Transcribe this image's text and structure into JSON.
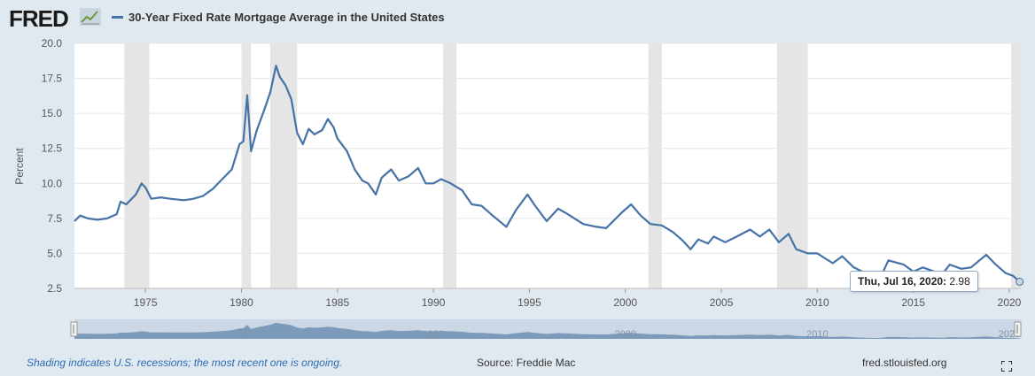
{
  "header": {
    "logo_text": "FRED",
    "logo_icon": "trend-chart-icon",
    "series_label": "30-Year Fixed Rate Mortgage Average in the United States",
    "series_color": "#4572a7"
  },
  "tooltip": {
    "date": "Thu, Jul 16, 2020:",
    "value": "2.98"
  },
  "footer": {
    "note": "Shading indicates U.S. recessions; the most recent one is ongoing.",
    "source": "Source: Freddie Mac",
    "site": "fred.stlouisfed.org"
  },
  "chart_data": {
    "type": "line",
    "ylabel": "Percent",
    "ylim": [
      2.5,
      20.0
    ],
    "yticks": [
      "2.5",
      "5.0",
      "7.5",
      "10.0",
      "12.5",
      "15.0",
      "17.5",
      "20.0"
    ],
    "xlim": [
      1971.3,
      2020.6
    ],
    "xticks": [
      "1975",
      "1980",
      "1985",
      "1990",
      "1995",
      "2000",
      "2005",
      "2010",
      "2015",
      "2020"
    ],
    "grid": true,
    "recessions": [
      [
        1973.9,
        1975.2
      ],
      [
        1980.0,
        1980.5
      ],
      [
        1981.5,
        1982.9
      ],
      [
        1990.5,
        1991.2
      ],
      [
        2001.2,
        2001.9
      ],
      [
        2007.9,
        2009.5
      ],
      [
        2020.1,
        2020.6
      ]
    ],
    "navigator_labels": [
      "1980",
      "1990",
      "2000",
      "2010",
      "2020"
    ],
    "series": [
      {
        "name": "30-Year Fixed Rate Mortgage Average in the United States",
        "color": "#4572a7",
        "points": [
          [
            1971.3,
            7.3
          ],
          [
            1971.6,
            7.7
          ],
          [
            1972.0,
            7.5
          ],
          [
            1972.5,
            7.4
          ],
          [
            1973.0,
            7.5
          ],
          [
            1973.5,
            7.8
          ],
          [
            1973.7,
            8.7
          ],
          [
            1974.0,
            8.5
          ],
          [
            1974.5,
            9.2
          ],
          [
            1974.8,
            10.0
          ],
          [
            1975.0,
            9.7
          ],
          [
            1975.3,
            8.9
          ],
          [
            1975.8,
            9.0
          ],
          [
            1976.3,
            8.9
          ],
          [
            1977.0,
            8.8
          ],
          [
            1977.5,
            8.9
          ],
          [
            1978.0,
            9.1
          ],
          [
            1978.5,
            9.6
          ],
          [
            1979.0,
            10.3
          ],
          [
            1979.5,
            11.0
          ],
          [
            1979.9,
            12.8
          ],
          [
            1980.1,
            13.0
          ],
          [
            1980.3,
            16.3
          ],
          [
            1980.5,
            12.3
          ],
          [
            1980.8,
            13.8
          ],
          [
            1981.2,
            15.3
          ],
          [
            1981.5,
            16.5
          ],
          [
            1981.8,
            18.4
          ],
          [
            1982.0,
            17.6
          ],
          [
            1982.3,
            17.0
          ],
          [
            1982.6,
            16.0
          ],
          [
            1982.9,
            13.6
          ],
          [
            1983.2,
            12.8
          ],
          [
            1983.5,
            13.9
          ],
          [
            1983.8,
            13.5
          ],
          [
            1984.2,
            13.8
          ],
          [
            1984.5,
            14.6
          ],
          [
            1984.8,
            14.0
          ],
          [
            1985.0,
            13.2
          ],
          [
            1985.5,
            12.3
          ],
          [
            1985.9,
            11.0
          ],
          [
            1986.3,
            10.2
          ],
          [
            1986.6,
            10.0
          ],
          [
            1987.0,
            9.2
          ],
          [
            1987.3,
            10.4
          ],
          [
            1987.8,
            11.0
          ],
          [
            1988.2,
            10.2
          ],
          [
            1988.7,
            10.5
          ],
          [
            1989.2,
            11.1
          ],
          [
            1989.6,
            10.0
          ],
          [
            1990.0,
            10.0
          ],
          [
            1990.4,
            10.3
          ],
          [
            1990.9,
            10.0
          ],
          [
            1991.5,
            9.5
          ],
          [
            1992.0,
            8.5
          ],
          [
            1992.5,
            8.4
          ],
          [
            1993.0,
            7.8
          ],
          [
            1993.8,
            6.9
          ],
          [
            1994.3,
            8.1
          ],
          [
            1994.9,
            9.2
          ],
          [
            1995.3,
            8.4
          ],
          [
            1995.9,
            7.3
          ],
          [
            1996.5,
            8.2
          ],
          [
            1997.0,
            7.8
          ],
          [
            1997.8,
            7.1
          ],
          [
            1998.5,
            6.9
          ],
          [
            1999.0,
            6.8
          ],
          [
            1999.8,
            7.9
          ],
          [
            2000.3,
            8.5
          ],
          [
            2000.8,
            7.7
          ],
          [
            2001.3,
            7.1
          ],
          [
            2001.9,
            7.0
          ],
          [
            2002.5,
            6.5
          ],
          [
            2003.0,
            5.9
          ],
          [
            2003.4,
            5.3
          ],
          [
            2003.8,
            6.0
          ],
          [
            2004.3,
            5.7
          ],
          [
            2004.6,
            6.2
          ],
          [
            2005.2,
            5.8
          ],
          [
            2005.8,
            6.2
          ],
          [
            2006.5,
            6.7
          ],
          [
            2007.0,
            6.2
          ],
          [
            2007.5,
            6.7
          ],
          [
            2008.0,
            5.8
          ],
          [
            2008.5,
            6.4
          ],
          [
            2008.9,
            5.3
          ],
          [
            2009.5,
            5.0
          ],
          [
            2010.0,
            5.0
          ],
          [
            2010.8,
            4.3
          ],
          [
            2011.3,
            4.8
          ],
          [
            2011.9,
            4.0
          ],
          [
            2012.5,
            3.6
          ],
          [
            2012.9,
            3.4
          ],
          [
            2013.4,
            3.6
          ],
          [
            2013.7,
            4.5
          ],
          [
            2014.5,
            4.2
          ],
          [
            2015.0,
            3.7
          ],
          [
            2015.5,
            4.0
          ],
          [
            2016.5,
            3.5
          ],
          [
            2016.9,
            4.2
          ],
          [
            2017.5,
            3.9
          ],
          [
            2018.0,
            4.0
          ],
          [
            2018.8,
            4.9
          ],
          [
            2019.3,
            4.2
          ],
          [
            2019.8,
            3.6
          ],
          [
            2020.2,
            3.4
          ],
          [
            2020.54,
            2.98
          ]
        ]
      }
    ]
  }
}
